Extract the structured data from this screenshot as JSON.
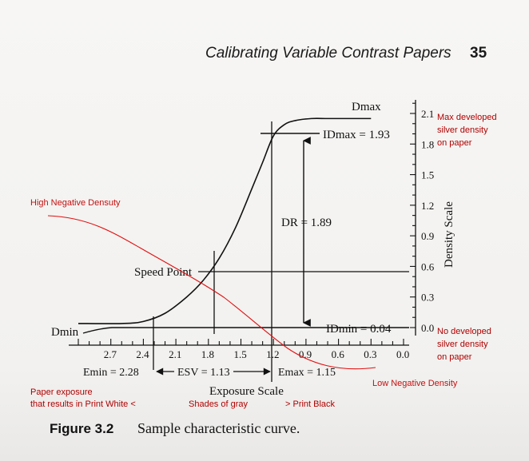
{
  "header": {
    "title": "Calibrating Variable Contrast Papers",
    "page_number": "35"
  },
  "caption": {
    "figure": "Figure 3.2",
    "text": "Sample characteristic curve."
  },
  "chart_data": {
    "type": "line",
    "title": "",
    "xlabel": "Exposure Scale",
    "ylabel": "Density Scale",
    "x_reversed": true,
    "xlim": [
      3.0,
      0.0
    ],
    "ylim": [
      0.0,
      2.1
    ],
    "x_ticks": [
      "2.7",
      "2.4",
      "2.1",
      "1.8",
      "1.5",
      "1.2",
      "0.9",
      "0.6",
      "0.3",
      "0.0"
    ],
    "y_ticks": [
      "0.0",
      "0.3",
      "0.6",
      "0.9",
      "1.2",
      "1.5",
      "1.8",
      "2.1"
    ],
    "series": [
      {
        "x": [
          3.0,
          2.6,
          2.4,
          2.2,
          2.0,
          1.85,
          1.7,
          1.55,
          1.4,
          1.3,
          1.2,
          1.1,
          1.0,
          0.85,
          0.7,
          0.5,
          0.3
        ],
        "y": [
          0.04,
          0.04,
          0.06,
          0.14,
          0.3,
          0.46,
          0.68,
          0.98,
          1.36,
          1.62,
          1.88,
          1.99,
          2.03,
          2.05,
          2.05,
          2.05,
          2.05
        ]
      }
    ],
    "labels": {
      "dmax": "Dmax",
      "dmin": "Dmin",
      "idmax": "IDmax = 1.93",
      "idmin": "IDmin = 0.04",
      "dr": "DR = 1.89",
      "speed_point": "Speed Point",
      "emin": "Emin = 2.28",
      "esv": "ESV = 1.13",
      "emax": "Emax = 1.15"
    },
    "annotations": {
      "high_negative": "High Negative Densuty",
      "low_negative": "Low Negative Density",
      "max_developed": [
        "Max developed",
        "silver density",
        "on paper"
      ],
      "no_developed": [
        "No developed",
        "silver density",
        "on paper"
      ],
      "paper_exposure": [
        "Paper exposure",
        "that results in Print White  <"
      ],
      "shades": "Shades of gray",
      "print_black": ">  Print Black"
    }
  }
}
